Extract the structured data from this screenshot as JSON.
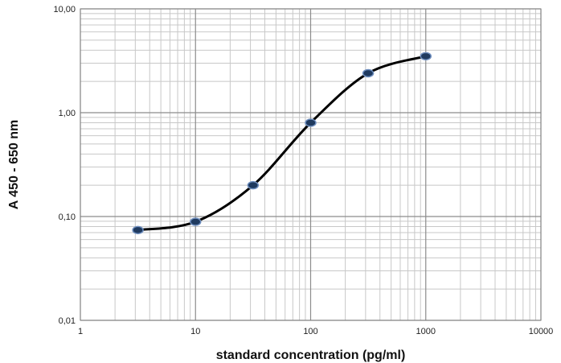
{
  "chart_data": {
    "type": "scatter",
    "xlabel": "standard concentration (pg/ml)",
    "ylabel": "A 450 - 650 nm",
    "x_scale": "log",
    "y_scale": "log",
    "xlim": [
      1,
      10000
    ],
    "ylim": [
      0.01,
      10
    ],
    "x_ticks": [
      1,
      10,
      100,
      1000,
      10000
    ],
    "x_tick_labels": [
      "1",
      "10",
      "100",
      "1000",
      "10000"
    ],
    "y_ticks": [
      0.01,
      0.1,
      1,
      10
    ],
    "y_tick_labels": [
      "0,01",
      "0,10",
      "1,00",
      "10,00"
    ],
    "grid": true,
    "series": [
      {
        "x": [
          3.16,
          10,
          31.6,
          100,
          316,
          1000
        ],
        "y": [
          0.074,
          0.089,
          0.2,
          0.8,
          2.4,
          3.5
        ],
        "marker_color": "#1f3a5f",
        "marker_edge": "#6f8fbf",
        "line_color": "#000000",
        "smooth": true
      }
    ]
  }
}
